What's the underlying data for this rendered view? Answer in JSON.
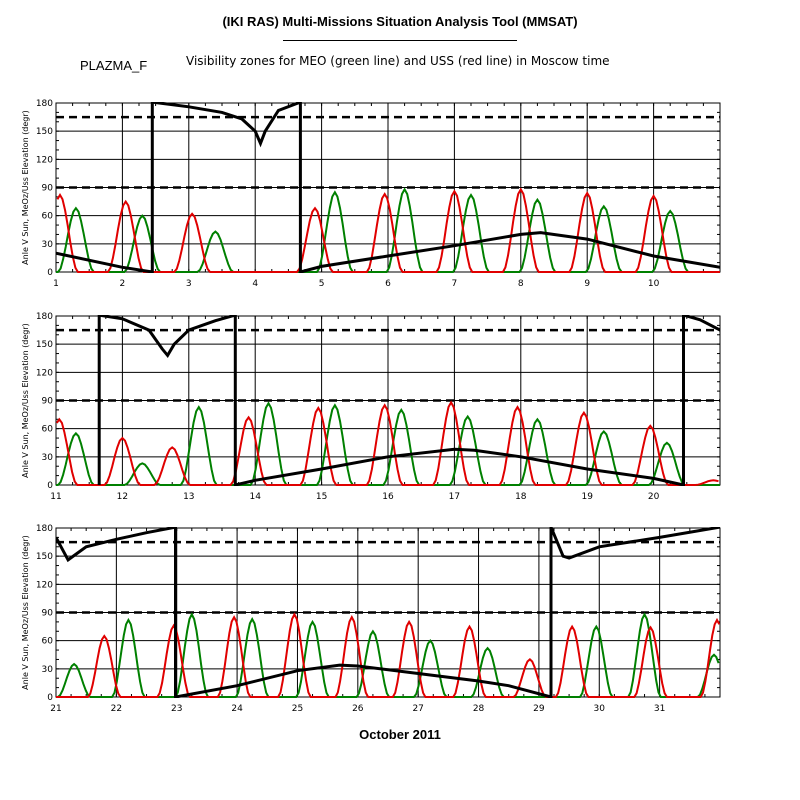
{
  "header": {
    "title": "(IKI RAS) Multi-Missions Situation Analysis Tool (MMSAT)",
    "mission": "PLAZMA_F",
    "subtitle": "Visibility zones for MEO (green line) and USS (red line) in Moscow time"
  },
  "footer": {
    "month": "October 2011"
  },
  "colors": {
    "green_series": "#008000",
    "red_series": "#e00000",
    "black_series": "#000000"
  },
  "chart_data": [
    {
      "type": "line",
      "panel": 1,
      "ylabel": "Anle V Sun, MeOz/Uss Elevation (degr)",
      "xlim": [
        1,
        11
      ],
      "ylim": [
        0,
        180
      ],
      "x_ticks": [
        1,
        2,
        3,
        4,
        5,
        6,
        7,
        8,
        9,
        10
      ],
      "y_ticks": [
        0,
        30,
        60,
        90,
        120,
        150,
        180
      ],
      "reference_lines": [
        90,
        165
      ],
      "black_curve": [
        [
          1,
          20
        ],
        [
          2,
          5
        ],
        [
          2.45,
          0
        ],
        [
          2.45,
          181
        ],
        [
          3,
          176
        ],
        [
          3.5,
          170
        ],
        [
          3.8,
          163
        ],
        [
          4,
          150
        ],
        [
          4.08,
          137
        ],
        [
          4.15,
          150
        ],
        [
          4.35,
          172
        ],
        [
          4.68,
          181
        ],
        [
          4.68,
          0
        ],
        [
          5,
          6
        ],
        [
          6,
          17
        ],
        [
          7,
          28
        ],
        [
          8,
          40
        ],
        [
          8.3,
          42
        ],
        [
          9,
          35
        ],
        [
          10,
          17
        ],
        [
          11,
          5
        ]
      ],
      "green_peaks": [
        [
          1.3,
          68
        ],
        [
          2.3,
          60
        ],
        [
          3.4,
          43
        ],
        [
          5.2,
          85
        ],
        [
          6.25,
          88
        ],
        [
          7.25,
          82
        ],
        [
          8.25,
          77
        ],
        [
          9.25,
          70
        ],
        [
          10.25,
          65
        ]
      ],
      "red_peaks": [
        [
          1.06,
          82
        ],
        [
          2.05,
          75
        ],
        [
          3.05,
          62
        ],
        [
          4.9,
          68
        ],
        [
          5.95,
          83
        ],
        [
          7.0,
          86
        ],
        [
          8.0,
          88
        ],
        [
          9.0,
          84
        ],
        [
          10.0,
          81
        ]
      ]
    },
    {
      "type": "line",
      "panel": 2,
      "ylabel": "Anle V Sun, MeOz/Uss Elevation (degr)",
      "xlim": [
        11,
        21
      ],
      "ylim": [
        0,
        180
      ],
      "x_ticks": [
        11,
        12,
        13,
        14,
        15,
        16,
        17,
        18,
        19,
        20
      ],
      "y_ticks": [
        0,
        30,
        60,
        90,
        120,
        150,
        180
      ],
      "reference_lines": [
        90,
        165
      ],
      "black_curve": [
        [
          11.65,
          0
        ],
        [
          11.65,
          181
        ],
        [
          12,
          177
        ],
        [
          12.4,
          165
        ],
        [
          12.6,
          145
        ],
        [
          12.68,
          138
        ],
        [
          12.78,
          150
        ],
        [
          13,
          165
        ],
        [
          13.4,
          175
        ],
        [
          13.7,
          181
        ],
        [
          13.7,
          0
        ],
        [
          14,
          5
        ],
        [
          15,
          17
        ],
        [
          16,
          30
        ],
        [
          17,
          38
        ],
        [
          17.3,
          37
        ],
        [
          18,
          30
        ],
        [
          19,
          17
        ],
        [
          20,
          7
        ],
        [
          20.45,
          0
        ],
        [
          20.45,
          181
        ],
        [
          20.7,
          176
        ],
        [
          21,
          165
        ]
      ],
      "green_peaks": [
        [
          11.3,
          55
        ],
        [
          12.3,
          23
        ],
        [
          13.15,
          83
        ],
        [
          14.2,
          87
        ],
        [
          15.2,
          85
        ],
        [
          16.2,
          80
        ],
        [
          17.2,
          73
        ],
        [
          18.25,
          70
        ],
        [
          19.25,
          57
        ],
        [
          20.2,
          45
        ]
      ],
      "red_peaks": [
        [
          11.05,
          70
        ],
        [
          12.0,
          50
        ],
        [
          12.75,
          40
        ],
        [
          13.9,
          72
        ],
        [
          14.95,
          82
        ],
        [
          15.95,
          85
        ],
        [
          16.95,
          88
        ],
        [
          17.95,
          83
        ],
        [
          18.95,
          77
        ],
        [
          19.95,
          63
        ],
        [
          20.9,
          5
        ]
      ]
    },
    {
      "type": "line",
      "panel": 3,
      "ylabel": "Anle V Sun, MeOz/Uss Elevation (degr)",
      "xlim": [
        21,
        32
      ],
      "ylim": [
        0,
        180
      ],
      "x_ticks": [
        21,
        22,
        23,
        24,
        25,
        26,
        27,
        28,
        29,
        30,
        31
      ],
      "y_ticks": [
        0,
        30,
        60,
        90,
        120,
        150,
        180
      ],
      "reference_lines": [
        90,
        165
      ],
      "black_curve": [
        [
          21,
          170
        ],
        [
          21.2,
          146
        ],
        [
          21.5,
          160
        ],
        [
          22,
          168
        ],
        [
          22.5,
          175
        ],
        [
          22.98,
          181
        ],
        [
          22.98,
          0
        ],
        [
          24,
          12
        ],
        [
          25,
          28
        ],
        [
          25.7,
          34
        ],
        [
          26,
          33
        ],
        [
          27,
          25
        ],
        [
          28,
          17
        ],
        [
          28.5,
          12
        ],
        [
          29.2,
          0
        ],
        [
          29.2,
          181
        ],
        [
          29.4,
          150
        ],
        [
          29.5,
          148
        ],
        [
          30,
          160
        ],
        [
          31,
          170
        ],
        [
          32,
          181
        ]
      ],
      "green_peaks": [
        [
          21.3,
          35
        ],
        [
          22.2,
          82
        ],
        [
          23.25,
          88
        ],
        [
          24.25,
          83
        ],
        [
          25.25,
          80
        ],
        [
          26.25,
          70
        ],
        [
          27.2,
          60
        ],
        [
          28.15,
          52
        ],
        [
          29.95,
          75
        ],
        [
          30.75,
          88
        ],
        [
          31.9,
          45
        ]
      ],
      "red_peaks": [
        [
          21.8,
          65
        ],
        [
          22.95,
          76
        ],
        [
          23.95,
          85
        ],
        [
          24.95,
          88
        ],
        [
          25.9,
          85
        ],
        [
          26.85,
          80
        ],
        [
          27.85,
          75
        ],
        [
          28.85,
          40
        ],
        [
          29.55,
          75
        ],
        [
          30.85,
          74
        ],
        [
          31.95,
          82
        ]
      ]
    }
  ]
}
